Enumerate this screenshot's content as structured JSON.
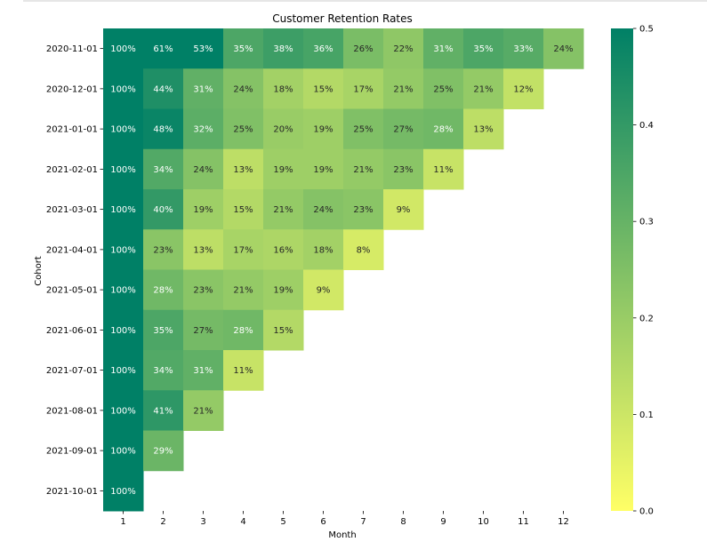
{
  "chart_data": {
    "type": "heatmap",
    "title": "Customer Retention Rates",
    "xlabel": "Month",
    "ylabel": "Cohort",
    "x_categories": [
      "1",
      "2",
      "3",
      "4",
      "5",
      "6",
      "7",
      "8",
      "9",
      "10",
      "11",
      "12"
    ],
    "y_categories": [
      "2020-11-01",
      "2020-12-01",
      "2021-01-01",
      "2021-02-01",
      "2021-03-01",
      "2021-04-01",
      "2021-05-01",
      "2021-06-01",
      "2021-07-01",
      "2021-08-01",
      "2021-09-01",
      "2021-10-01"
    ],
    "values": [
      [
        1.0,
        0.61,
        0.53,
        0.35,
        0.38,
        0.36,
        0.26,
        0.22,
        0.31,
        0.35,
        0.33,
        0.24
      ],
      [
        1.0,
        0.44,
        0.31,
        0.24,
        0.18,
        0.15,
        0.17,
        0.21,
        0.25,
        0.21,
        0.12
      ],
      [
        1.0,
        0.48,
        0.32,
        0.25,
        0.2,
        0.19,
        0.25,
        0.27,
        0.28,
        0.13
      ],
      [
        1.0,
        0.34,
        0.24,
        0.13,
        0.19,
        0.19,
        0.21,
        0.23,
        0.11
      ],
      [
        1.0,
        0.4,
        0.19,
        0.15,
        0.21,
        0.24,
        0.23,
        0.09
      ],
      [
        1.0,
        0.23,
        0.13,
        0.17,
        0.16,
        0.18,
        0.08
      ],
      [
        1.0,
        0.28,
        0.23,
        0.21,
        0.19,
        0.09
      ],
      [
        1.0,
        0.35,
        0.27,
        0.28,
        0.15
      ],
      [
        1.0,
        0.34,
        0.31,
        0.11
      ],
      [
        1.0,
        0.41,
        0.21
      ],
      [
        1.0,
        0.29
      ],
      [
        1.0
      ]
    ],
    "labels": [
      [
        "100%",
        "61%",
        "53%",
        "35%",
        "38%",
        "36%",
        "26%",
        "22%",
        "31%",
        "35%",
        "33%",
        "24%"
      ],
      [
        "100%",
        "44%",
        "31%",
        "24%",
        "18%",
        "15%",
        "17%",
        "21%",
        "25%",
        "21%",
        "12%"
      ],
      [
        "100%",
        "48%",
        "32%",
        "25%",
        "20%",
        "19%",
        "25%",
        "27%",
        "28%",
        "13%"
      ],
      [
        "100%",
        "34%",
        "24%",
        "13%",
        "19%",
        "19%",
        "21%",
        "23%",
        "11%"
      ],
      [
        "100%",
        "40%",
        "19%",
        "15%",
        "21%",
        "24%",
        "23%",
        "9%"
      ],
      [
        "100%",
        "23%",
        "13%",
        "17%",
        "16%",
        "18%",
        "8%"
      ],
      [
        "100%",
        "28%",
        "23%",
        "21%",
        "19%",
        "9%"
      ],
      [
        "100%",
        "35%",
        "27%",
        "28%",
        "15%"
      ],
      [
        "100%",
        "34%",
        "31%",
        "11%"
      ],
      [
        "100%",
        "41%",
        "21%"
      ],
      [
        "100%",
        "29%"
      ],
      [
        "100%"
      ]
    ],
    "color_range": [
      0.0,
      0.5
    ],
    "colormap": "summer_r",
    "colormap_low": "#ffff66",
    "colormap_high": "#008066",
    "colorbar": {
      "ticks": [
        "0.0",
        "0.1",
        "0.2",
        "0.3",
        "0.4",
        "0.5"
      ],
      "tick_values": [
        0.0,
        0.1,
        0.2,
        0.3,
        0.4,
        0.5
      ],
      "position": "right"
    },
    "grid": false,
    "text_color_dark": "#262626",
    "text_color_light": "#ffffff"
  }
}
